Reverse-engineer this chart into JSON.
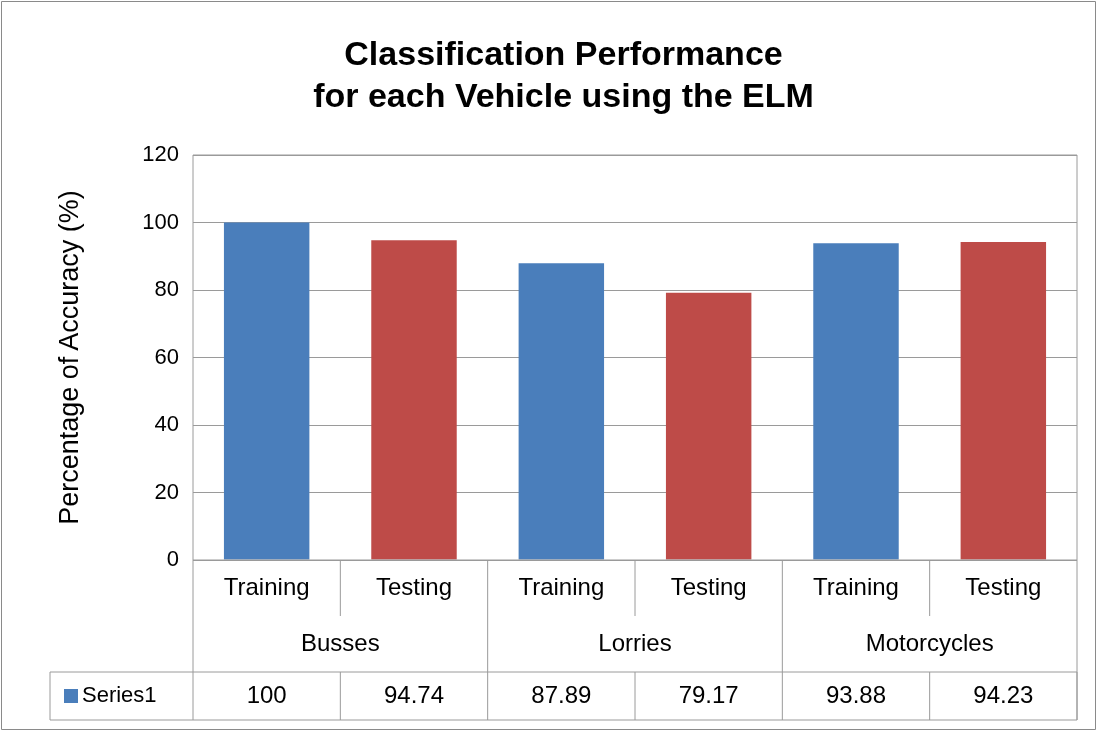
{
  "chart_data": {
    "type": "bar",
    "title": "Classification Performance\nfor each Vehicle using the ELM",
    "ylabel": "Percentage of Accuracy (%)",
    "categories": [
      "Training",
      "Testing",
      "Training",
      "Testing",
      "Training",
      "Testing"
    ],
    "series": [
      {
        "name": "Series1",
        "color": "#4a7ebb",
        "colors": [
          "#4a7ebb",
          "#be4b48",
          "#4a7ebb",
          "#be4b48",
          "#4a7ebb",
          "#be4b48"
        ],
        "values": [
          100,
          94.74,
          87.89,
          79.17,
          93.88,
          94.23
        ]
      }
    ],
    "annotations": [
      "Busses",
      "Lorries",
      "Motorcycles"
    ],
    "ylim": [
      0,
      120
    ],
    "yticks": [
      0,
      20,
      40,
      60,
      80,
      100,
      120
    ],
    "grid": "y",
    "data_labels": true,
    "legend": "bottom"
  }
}
